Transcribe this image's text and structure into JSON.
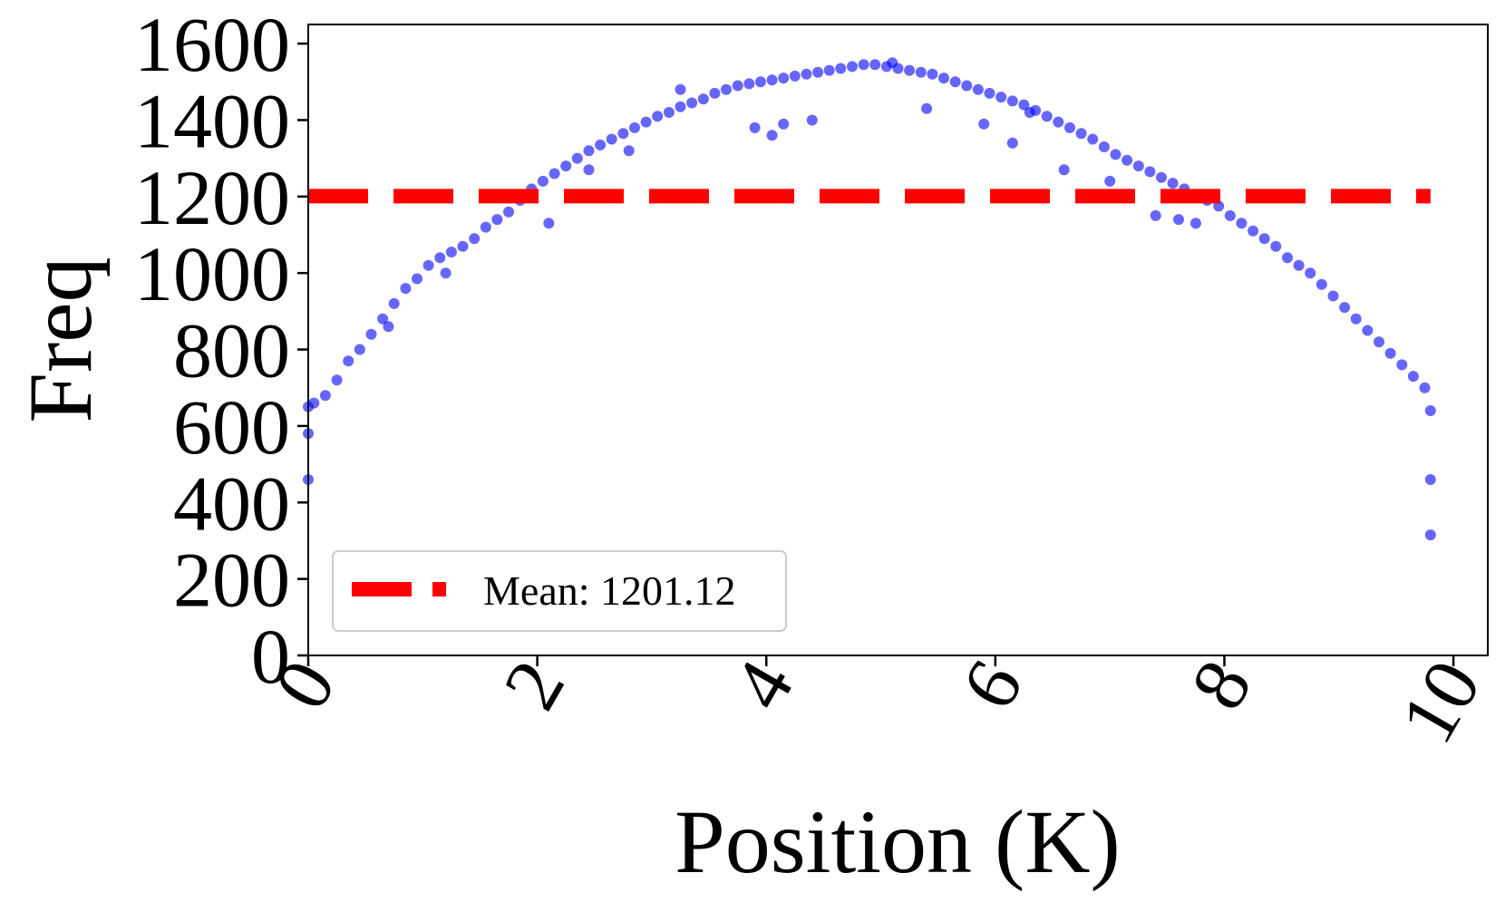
{
  "chart_data": {
    "type": "scatter",
    "title": "",
    "xlabel": "Position (K)",
    "ylabel": "Freq",
    "xlim": [
      0,
      10.3
    ],
    "ylim": [
      0,
      1650
    ],
    "xticks": [
      "0",
      "2",
      "4",
      "6",
      "8",
      "10"
    ],
    "xtick_values": [
      0,
      2,
      4,
      6,
      8,
      10
    ],
    "yticks": [
      "0",
      "200",
      "400",
      "600",
      "800",
      "1000",
      "1200",
      "1400",
      "1600"
    ],
    "ytick_values": [
      0,
      200,
      400,
      600,
      800,
      1000,
      1200,
      1400,
      1600
    ],
    "grid": false,
    "legend": {
      "placement": "lower-left",
      "entries": [
        {
          "label": "Mean: 1201.12",
          "style": "dashed-line",
          "color": "#ff0000"
        }
      ]
    },
    "mean_line": {
      "value": 1201.12,
      "x_range": [
        0,
        9.8
      ],
      "color": "#ff0000"
    },
    "series": [
      {
        "color": "#0000ff",
        "x": [
          0.0,
          0.0,
          0.0,
          0.05,
          0.15,
          0.25,
          0.35,
          0.45,
          0.55,
          0.65,
          0.75,
          0.85,
          0.95,
          1.05,
          1.15,
          1.25,
          1.35,
          1.45,
          1.55,
          1.65,
          1.75,
          1.85,
          1.95,
          2.05,
          2.15,
          2.25,
          2.35,
          2.45,
          2.55,
          2.65,
          2.75,
          2.85,
          2.95,
          3.05,
          3.15,
          3.25,
          3.35,
          3.45,
          3.55,
          3.65,
          3.75,
          3.85,
          3.95,
          4.05,
          4.15,
          4.25,
          4.35,
          4.45,
          4.55,
          4.65,
          4.75,
          4.85,
          4.95,
          5.05,
          5.15,
          5.25,
          5.35,
          5.45,
          5.55,
          5.65,
          5.75,
          5.85,
          5.95,
          6.05,
          6.15,
          6.25,
          6.35,
          6.45,
          6.55,
          6.65,
          6.75,
          6.85,
          6.95,
          7.05,
          7.15,
          7.25,
          7.35,
          7.45,
          7.55,
          7.65,
          7.75,
          7.85,
          7.95,
          8.05,
          8.15,
          8.25,
          8.35,
          8.45,
          8.55,
          8.65,
          8.75,
          8.85,
          8.95,
          9.05,
          9.15,
          9.25,
          9.35,
          9.45,
          9.55,
          9.65,
          9.75,
          9.8,
          9.8,
          9.8,
          3.25,
          3.9,
          4.4,
          5.4,
          5.9,
          6.15,
          6.6,
          7.0,
          7.4,
          7.6,
          7.75,
          2.1,
          2.45,
          2.8,
          1.2,
          0.7,
          4.05,
          4.15,
          5.1,
          6.3
        ],
        "y": [
          650,
          580,
          460,
          660,
          680,
          720,
          770,
          800,
          840,
          880,
          920,
          960,
          985,
          1020,
          1040,
          1055,
          1070,
          1090,
          1120,
          1140,
          1160,
          1190,
          1220,
          1240,
          1260,
          1280,
          1300,
          1320,
          1335,
          1350,
          1365,
          1380,
          1395,
          1410,
          1420,
          1435,
          1445,
          1455,
          1470,
          1480,
          1490,
          1495,
          1500,
          1505,
          1510,
          1515,
          1520,
          1525,
          1530,
          1535,
          1540,
          1545,
          1545,
          1540,
          1535,
          1530,
          1525,
          1520,
          1510,
          1500,
          1490,
          1480,
          1470,
          1460,
          1450,
          1440,
          1425,
          1410,
          1395,
          1380,
          1365,
          1350,
          1330,
          1310,
          1295,
          1280,
          1265,
          1250,
          1235,
          1220,
          1205,
          1190,
          1175,
          1150,
          1130,
          1110,
          1090,
          1070,
          1040,
          1020,
          1000,
          970,
          940,
          910,
          880,
          850,
          820,
          790,
          760,
          730,
          700,
          640,
          460,
          315,
          1480,
          1380,
          1400,
          1430,
          1390,
          1340,
          1270,
          1240,
          1150,
          1140,
          1130,
          1130,
          1270,
          1320,
          1000,
          860,
          1360,
          1390,
          1550,
          1420
        ]
      }
    ]
  }
}
